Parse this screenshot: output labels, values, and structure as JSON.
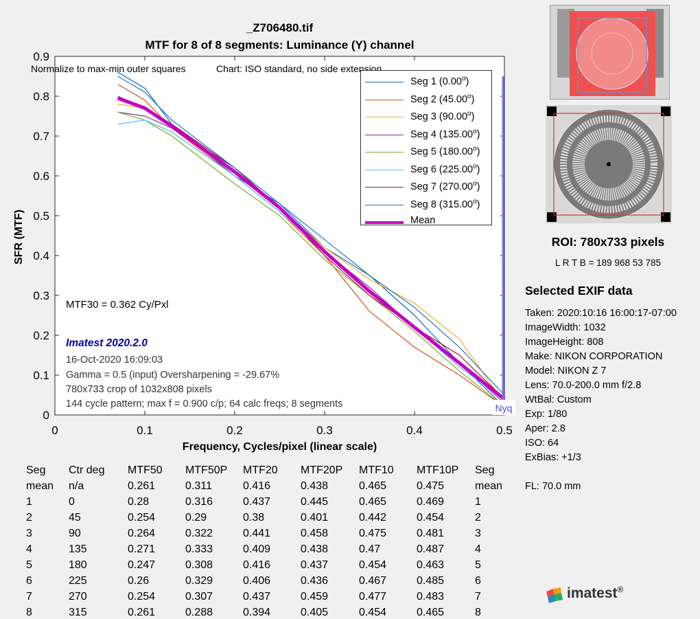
{
  "title": "_Z706480.tif",
  "subtitle": "MTF for 8 of 8 segments:  Luminance (Y) channel",
  "chart_data": {
    "type": "line",
    "xlabel": "Frequency, Cycles/pixel (linear scale)",
    "ylabel": "SFR (MTF)",
    "xlim": [
      0,
      0.5
    ],
    "ylim": [
      0,
      0.9
    ],
    "xticks": [
      "0",
      "0.1",
      "0.2",
      "0.3",
      "0.4",
      "0.5"
    ],
    "yticks": [
      "0",
      "0.1",
      "0.2",
      "0.3",
      "0.4",
      "0.5",
      "0.6",
      "0.7",
      "0.8",
      "0.9"
    ],
    "grid": false,
    "legend_position": "top-right",
    "nyquist_label": "Nyq",
    "nyquist_x": 0.5,
    "series": [
      {
        "name": "Seg 1 (0.00",
        "sup": "o",
        "close": ")",
        "color": "#0b6cb8",
        "x": [
          0.07,
          0.1,
          0.13,
          0.2,
          0.25,
          0.3,
          0.35,
          0.4,
          0.45,
          0.5
        ],
        "y": [
          0.86,
          0.82,
          0.73,
          0.6,
          0.53,
          0.42,
          0.35,
          0.25,
          0.13,
          0.02
        ]
      },
      {
        "name": "Seg 2 (45.00",
        "sup": "o",
        "close": ")",
        "color": "#d9531a",
        "x": [
          0.07,
          0.1,
          0.13,
          0.2,
          0.25,
          0.3,
          0.35,
          0.4,
          0.45,
          0.5
        ],
        "y": [
          0.83,
          0.79,
          0.72,
          0.6,
          0.51,
          0.4,
          0.26,
          0.17,
          0.1,
          0.02
        ]
      },
      {
        "name": "Seg 3 (90.00",
        "sup": "o",
        "close": ")",
        "color": "#edb021",
        "x": [
          0.07,
          0.1,
          0.13,
          0.2,
          0.25,
          0.3,
          0.35,
          0.4,
          0.45,
          0.5
        ],
        "y": [
          0.78,
          0.77,
          0.73,
          0.62,
          0.52,
          0.42,
          0.34,
          0.28,
          0.19,
          0.03
        ]
      },
      {
        "name": "Seg 4 (135.00",
        "sup": "o",
        "close": ")",
        "color": "#7d2f8e",
        "x": [
          0.07,
          0.1,
          0.13,
          0.2,
          0.25,
          0.3,
          0.35,
          0.4,
          0.45,
          0.5
        ],
        "y": [
          0.76,
          0.75,
          0.72,
          0.62,
          0.52,
          0.41,
          0.32,
          0.22,
          0.13,
          0.03
        ]
      },
      {
        "name": "Seg 5 (180.00",
        "sup": "o",
        "close": ")",
        "color": "#77ac30",
        "x": [
          0.07,
          0.1,
          0.13,
          0.2,
          0.25,
          0.3,
          0.35,
          0.4,
          0.45,
          0.5
        ],
        "y": [
          0.76,
          0.74,
          0.7,
          0.58,
          0.5,
          0.39,
          0.3,
          0.21,
          0.11,
          0.02
        ]
      },
      {
        "name": "Seg 6 (225.00",
        "sup": "o",
        "close": ")",
        "color": "#4dbeee",
        "x": [
          0.07,
          0.1,
          0.13,
          0.2,
          0.25,
          0.3,
          0.35,
          0.4,
          0.45,
          0.5
        ],
        "y": [
          0.73,
          0.74,
          0.71,
          0.6,
          0.51,
          0.41,
          0.31,
          0.22,
          0.12,
          0.04
        ]
      },
      {
        "name": "Seg 7 (270.00",
        "sup": "o",
        "close": ")",
        "color": "#a2142f",
        "x": [
          0.07,
          0.1,
          0.13,
          0.2,
          0.25,
          0.3,
          0.35,
          0.4,
          0.45,
          0.5
        ],
        "y": [
          0.8,
          0.77,
          0.73,
          0.62,
          0.52,
          0.4,
          0.3,
          0.22,
          0.15,
          0.04
        ]
      },
      {
        "name": "Seg 8 (315.00",
        "sup": "o",
        "close": ")",
        "color": "#1f77c4",
        "x": [
          0.07,
          0.1,
          0.13,
          0.2,
          0.25,
          0.3,
          0.35,
          0.4,
          0.45,
          0.5
        ],
        "y": [
          0.85,
          0.81,
          0.74,
          0.62,
          0.53,
          0.44,
          0.35,
          0.27,
          0.17,
          0.05
        ]
      },
      {
        "name": "Mean",
        "sup": "",
        "close": "",
        "color": "#c400c4",
        "bold": true,
        "x": [
          0.07,
          0.1,
          0.13,
          0.2,
          0.25,
          0.3,
          0.35,
          0.4,
          0.45,
          0.5
        ],
        "y": [
          0.795,
          0.77,
          0.725,
          0.61,
          0.52,
          0.41,
          0.31,
          0.22,
          0.13,
          0.04
        ]
      }
    ]
  },
  "notes": {
    "normalize": "Normalize to max-min outer squares",
    "chart_std": "Chart: ISO standard, no side extension",
    "mtf30": "MTF30 = 0.362 Cy/Pxl",
    "version": "Imatest 2020.2.0",
    "date": "16-Oct-2020 16:09:03",
    "gamma": "Gamma = 0.5 (input)  Oversharpening = -29.67%",
    "crop": "780x733 crop of 1032x808 pixels",
    "pattern": "144 cycle pattern; max f = 0.900 c/p;  64 calc freqs;  8 segments"
  },
  "roi": {
    "label": "ROI:  780x733 pixels",
    "lrtb": "L R  T B = 189 968  53 785"
  },
  "exif": {
    "title": "Selected EXIF data",
    "lines": [
      "Taken: 2020:10:16 16:00:17-07:00",
      "ImageWidth:  1032",
      "ImageHeight:  808",
      "Make:  NIKON CORPORATION",
      "Model: NIKON Z 7",
      "Lens:  70.0-200.0 mm f/2.8",
      "WtBal:  Custom",
      "Exp:   1/80",
      "Aper:  2.8",
      "ISO:   64",
      "ExBias:  +1/3",
      "",
      "FL:  70.0 mm"
    ]
  },
  "table": {
    "headers": [
      "Seg",
      "Ctr deg",
      "MTF50",
      "MTF50P",
      "MTF20",
      "MTF20P",
      "MTF10",
      "MTF10P",
      "Seg"
    ],
    "rows": [
      [
        "mean",
        "n/a",
        "0.261",
        "0.311",
        "0.416",
        "0.438",
        "0.465",
        "0.475",
        "mean"
      ],
      [
        "1",
        "0",
        "0.28",
        "0.316",
        "0.437",
        "0.445",
        "0.465",
        "0.469",
        "1"
      ],
      [
        "2",
        "45",
        "0.254",
        "0.29",
        "0.38",
        "0.401",
        "0.442",
        "0.454",
        "2"
      ],
      [
        "3",
        "90",
        "0.264",
        "0.322",
        "0.441",
        "0.458",
        "0.475",
        "0.481",
        "3"
      ],
      [
        "4",
        "135",
        "0.271",
        "0.333",
        "0.409",
        "0.438",
        "0.47",
        "0.487",
        "4"
      ],
      [
        "5",
        "180",
        "0.247",
        "0.308",
        "0.416",
        "0.437",
        "0.454",
        "0.463",
        "5"
      ],
      [
        "6",
        "225",
        "0.26",
        "0.329",
        "0.406",
        "0.436",
        "0.467",
        "0.485",
        "6"
      ],
      [
        "7",
        "270",
        "0.254",
        "0.307",
        "0.437",
        "0.459",
        "0.477",
        "0.483",
        "7"
      ],
      [
        "8",
        "315",
        "0.261",
        "0.288",
        "0.394",
        "0.405",
        "0.454",
        "0.465",
        "8"
      ]
    ]
  },
  "logo": {
    "text": "imatest",
    "mark": "®"
  }
}
